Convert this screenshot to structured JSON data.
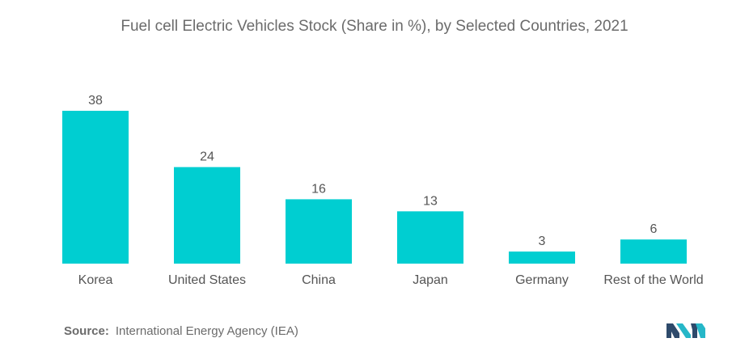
{
  "title": "Fuel cell Electric Vehicles Stock (Share in %), by Selected Countries, 2021",
  "source": {
    "label": "Source:",
    "text": "International Energy Agency (IEA)"
  },
  "colors": {
    "bar": "#00CED1",
    "text": "#555555",
    "muted": "#6b6b6b",
    "logo_dark": "#2e4a6b",
    "logo_light": "#26b7c8"
  },
  "chart_data": {
    "type": "bar",
    "title": "Fuel cell Electric Vehicles Stock (Share in %), by Selected Countries, 2021",
    "categories": [
      "Korea",
      "United States",
      "China",
      "Japan",
      "Germany",
      "Rest of the World"
    ],
    "values": [
      38,
      24,
      16,
      13,
      3,
      6
    ],
    "xlabel": "",
    "ylabel": "",
    "ylim": [
      0,
      38
    ],
    "grid": false,
    "legend": "none",
    "data_labels": true
  }
}
